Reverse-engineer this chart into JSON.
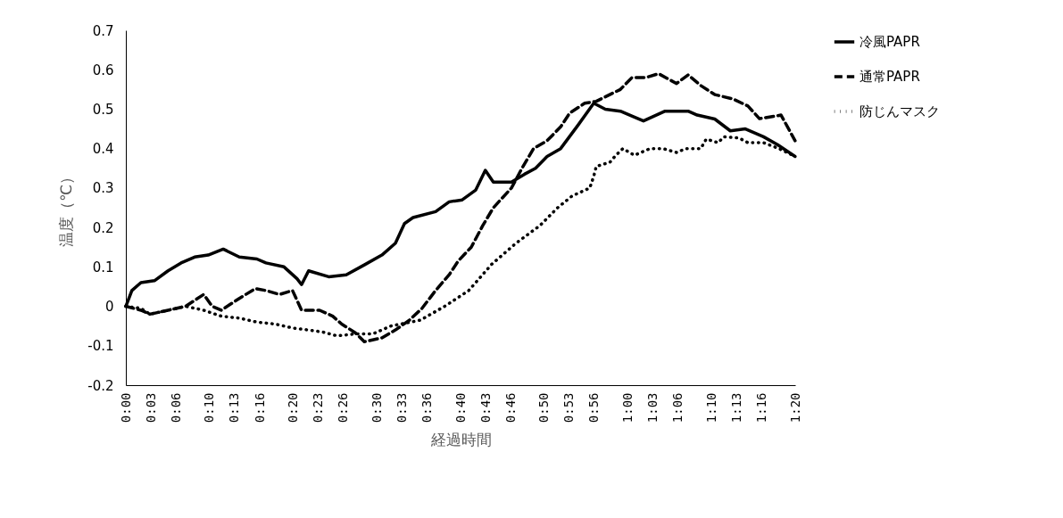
{
  "chart_data": {
    "type": "line",
    "xlabel": "経過時間",
    "ylabel": "温度（℃）",
    "legend": "right",
    "grid": false,
    "xlim": [
      0,
      1.3333
    ],
    "ylim": [
      -0.2,
      0.7
    ],
    "xticks": [
      {
        "value": 0,
        "label": "0:00"
      },
      {
        "value": 0.05,
        "label": "0:03"
      },
      {
        "value": 0.1,
        "label": "0:06"
      },
      {
        "value": 0.1667,
        "label": "0:10"
      },
      {
        "value": 0.2167,
        "label": "0:13"
      },
      {
        "value": 0.2667,
        "label": "0:16"
      },
      {
        "value": 0.3333,
        "label": "0:20"
      },
      {
        "value": 0.3833,
        "label": "0:23"
      },
      {
        "value": 0.4333,
        "label": "0:26"
      },
      {
        "value": 0.5,
        "label": "0:30"
      },
      {
        "value": 0.55,
        "label": "0:33"
      },
      {
        "value": 0.6,
        "label": "0:36"
      },
      {
        "value": 0.6667,
        "label": "0:40"
      },
      {
        "value": 0.7167,
        "label": "0:43"
      },
      {
        "value": 0.7667,
        "label": "0:46"
      },
      {
        "value": 0.8333,
        "label": "0:50"
      },
      {
        "value": 0.8833,
        "label": "0:53"
      },
      {
        "value": 0.9333,
        "label": "0:56"
      },
      {
        "value": 1,
        "label": "1:00"
      },
      {
        "value": 1.05,
        "label": "1:03"
      },
      {
        "value": 1.1,
        "label": "1:06"
      },
      {
        "value": 1.1667,
        "label": "1:10"
      },
      {
        "value": 1.2167,
        "label": "1:13"
      },
      {
        "value": 1.2667,
        "label": "1:16"
      },
      {
        "value": 1.3333,
        "label": "1:20"
      }
    ],
    "yticks": [
      -0.2,
      -0.1,
      0,
      0.1,
      0.2,
      0.3,
      0.4,
      0.5,
      0.6,
      0.7
    ],
    "series": [
      {
        "name": "冷風PAPR",
        "color": "#000000",
        "line_style": "solid",
        "x": [
          0,
          0.012,
          0.03,
          0.057,
          0.084,
          0.11,
          0.137,
          0.164,
          0.194,
          0.226,
          0.261,
          0.279,
          0.315,
          0.341,
          0.35,
          0.364,
          0.404,
          0.439,
          0.475,
          0.51,
          0.537,
          0.555,
          0.572,
          0.617,
          0.644,
          0.67,
          0.697,
          0.716,
          0.732,
          0.768,
          0.794,
          0.816,
          0.839,
          0.866,
          0.901,
          0.932,
          0.955,
          0.985,
          1.013,
          1.031,
          1.074,
          1.12,
          1.138,
          1.173,
          1.204,
          1.234,
          1.27,
          1.298,
          1.333
        ],
        "values": [
          0,
          0.04,
          0.06,
          0.065,
          0.09,
          0.11,
          0.125,
          0.13,
          0.145,
          0.125,
          0.12,
          0.11,
          0.1,
          0.07,
          0.055,
          0.09,
          0.075,
          0.08,
          0.105,
          0.13,
          0.16,
          0.21,
          0.225,
          0.24,
          0.265,
          0.27,
          0.295,
          0.345,
          0.315,
          0.315,
          0.335,
          0.35,
          0.38,
          0.4,
          0.46,
          0.515,
          0.5,
          0.495,
          0.48,
          0.47,
          0.495,
          0.495,
          0.485,
          0.475,
          0.445,
          0.45,
          0.43,
          0.41,
          0.38
        ]
      },
      {
        "name": "通常PAPR",
        "color": "#000000",
        "line_style": "dashed",
        "x": [
          0,
          0.03,
          0.048,
          0.084,
          0.119,
          0.155,
          0.172,
          0.19,
          0.226,
          0.258,
          0.279,
          0.306,
          0.332,
          0.35,
          0.386,
          0.412,
          0.43,
          0.457,
          0.475,
          0.51,
          0.537,
          0.564,
          0.59,
          0.617,
          0.644,
          0.662,
          0.688,
          0.711,
          0.732,
          0.768,
          0.789,
          0.812,
          0.839,
          0.866,
          0.884,
          0.914,
          0.937,
          0.985,
          1.008,
          1.035,
          1.061,
          1.097,
          1.12,
          1.145,
          1.173,
          1.209,
          1.239,
          1.262,
          1.305,
          1.333
        ],
        "values": [
          0,
          -0.01,
          -0.02,
          -0.01,
          0,
          0.03,
          0,
          -0.01,
          0.02,
          0.045,
          0.04,
          0.03,
          0.04,
          -0.01,
          -0.01,
          -0.025,
          -0.045,
          -0.067,
          -0.09,
          -0.08,
          -0.06,
          -0.036,
          -0.005,
          0.04,
          0.08,
          0.115,
          0.15,
          0.205,
          0.25,
          0.3,
          0.35,
          0.4,
          0.42,
          0.455,
          0.49,
          0.515,
          0.52,
          0.55,
          0.58,
          0.58,
          0.59,
          0.565,
          0.587,
          0.56,
          0.537,
          0.526,
          0.508,
          0.476,
          0.485,
          0.42
        ]
      },
      {
        "name": "防じんマスク",
        "color": "#000000",
        "line_style": "dotted",
        "x": [
          0,
          0.03,
          0.048,
          0.084,
          0.119,
          0.155,
          0.19,
          0.226,
          0.261,
          0.297,
          0.332,
          0.363,
          0.391,
          0.421,
          0.457,
          0.492,
          0.528,
          0.587,
          0.635,
          0.683,
          0.729,
          0.777,
          0.825,
          0.86,
          0.889,
          0.924,
          0.932,
          0.937,
          0.964,
          0.976,
          0.99,
          1.013,
          1.044,
          1.07,
          1.097,
          1.115,
          1.145,
          1.156,
          1.18,
          1.191,
          1.221,
          1.239,
          1.27,
          1.301,
          1.333
        ],
        "values": [
          0,
          -0.005,
          -0.02,
          -0.01,
          0,
          -0.01,
          -0.025,
          -0.03,
          -0.04,
          -0.045,
          -0.055,
          -0.06,
          -0.065,
          -0.075,
          -0.07,
          -0.07,
          -0.05,
          -0.035,
          0,
          0.04,
          0.107,
          0.16,
          0.205,
          0.25,
          0.28,
          0.3,
          0.33,
          0.355,
          0.365,
          0.383,
          0.4,
          0.383,
          0.4,
          0.4,
          0.39,
          0.4,
          0.4,
          0.424,
          0.415,
          0.43,
          0.427,
          0.415,
          0.415,
          0.4,
          0.38
        ]
      }
    ]
  }
}
